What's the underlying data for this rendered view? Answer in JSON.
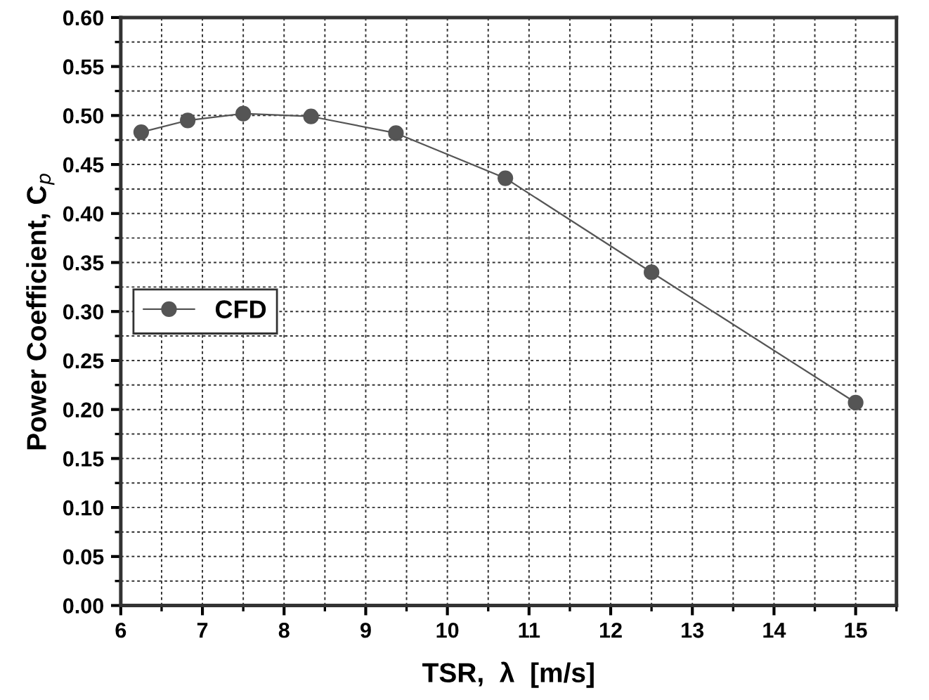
{
  "chart_data": {
    "type": "line",
    "xlabel": "TSR,  λ  [m/s]",
    "ylabel": "Power Coefficient, C$_{p}$",
    "x": [
      6.25,
      6.82,
      7.5,
      8.33,
      9.37,
      10.71,
      12.5,
      15
    ],
    "series": [
      {
        "name": "CFD",
        "color": "#555555",
        "values": [
          0.483,
          0.495,
          0.502,
          0.499,
          0.482,
          0.436,
          0.34,
          0.207
        ]
      }
    ],
    "xlim": [
      6,
      15.5
    ],
    "xticks": [
      6,
      7,
      8,
      9,
      10,
      11,
      12,
      13,
      14,
      15
    ],
    "ylim": [
      0,
      0.6
    ],
    "yticks": [
      {
        "value": 0,
        "label": "0.00"
      },
      {
        "value": 0.05,
        "label": "0.05"
      },
      {
        "value": 0.1,
        "label": "0.10"
      },
      {
        "value": 0.15,
        "label": "0.15"
      },
      {
        "value": 0.2,
        "label": "0.20"
      },
      {
        "value": 0.25,
        "label": "0.25"
      },
      {
        "value": 0.3,
        "label": "0.30"
      },
      {
        "value": 0.35,
        "label": "0.35"
      },
      {
        "value": 0.4,
        "label": "0.40"
      },
      {
        "value": 0.45,
        "label": "0.45"
      },
      {
        "value": 0.5,
        "label": "0.50"
      },
      {
        "value": 0.55,
        "label": "0.55"
      },
      {
        "value": 0.6,
        "label": "0.60"
      }
    ],
    "grid": true,
    "legend": "center left",
    "marker": "circle",
    "line_style": "solid"
  }
}
